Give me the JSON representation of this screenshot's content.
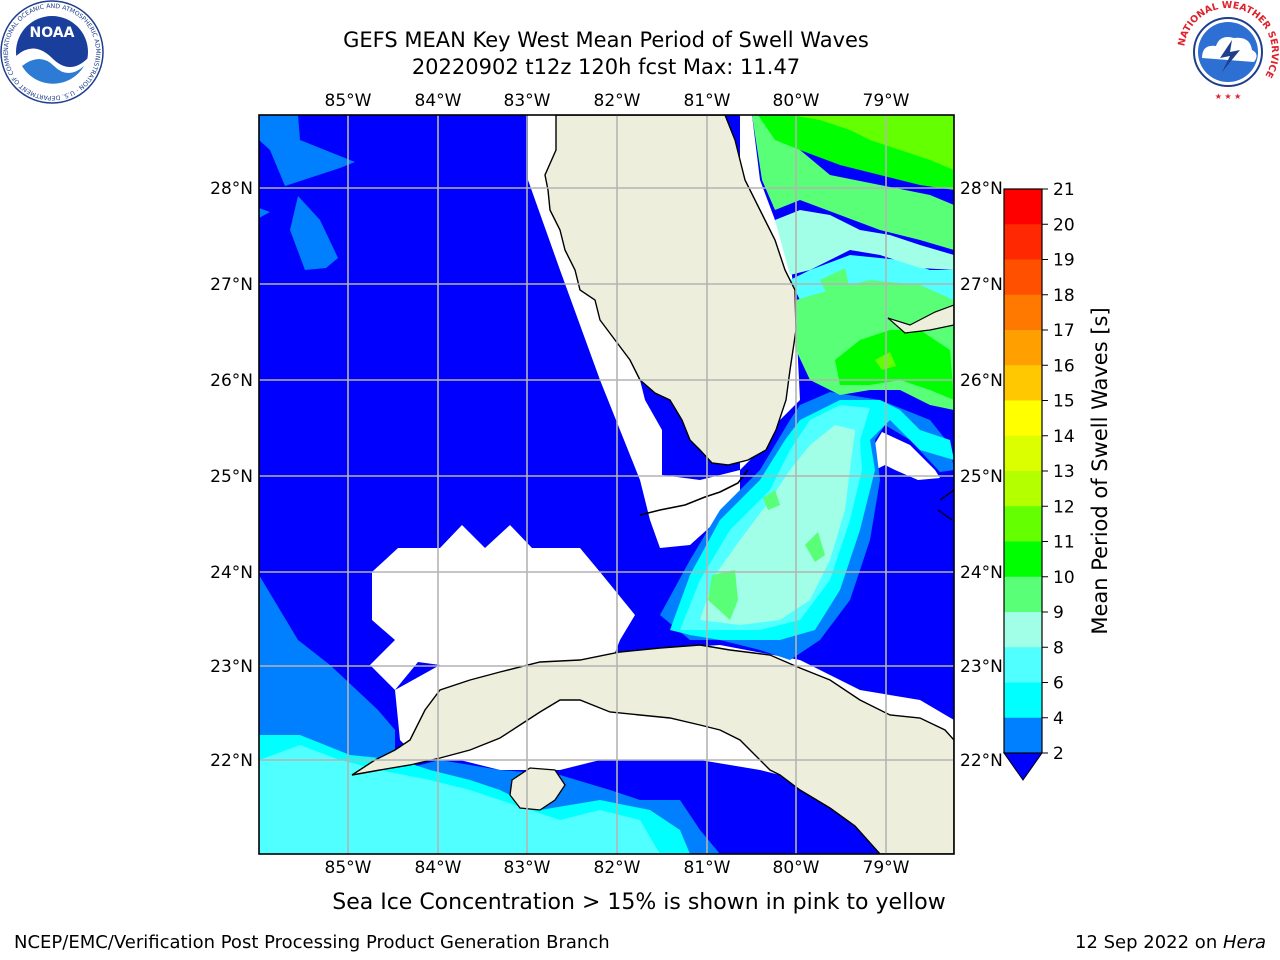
{
  "title_line1": "GEFS MEAN Key West Mean Period of Swell Waves",
  "title_line2": "20220902 t12z 120h fcst   Max: 11.47",
  "lon_labels": [
    "85°W",
    "84°W",
    "83°W",
    "82°W",
    "81°W",
    "80°W",
    "79°W"
  ],
  "lat_labels": [
    "28°N",
    "27°N",
    "26°N",
    "25°N",
    "24°N",
    "23°N",
    "22°N"
  ],
  "colorbar": {
    "label": "Mean Period of Swell Waves [s]",
    "ticks": [
      "21",
      "20",
      "19",
      "18",
      "17",
      "16",
      "15",
      "14",
      "13",
      "12",
      "11",
      "10",
      "9",
      "8",
      "6",
      "4",
      "2"
    ],
    "colors": [
      "#ff0000",
      "#ff2800",
      "#ff5000",
      "#ff7800",
      "#ffa000",
      "#ffc800",
      "#ffff00",
      "#dcff00",
      "#b4ff00",
      "#64ff00",
      "#00ff00",
      "#5aff78",
      "#a0ffe6",
      "#50ffff",
      "#00ffff",
      "#0080ff"
    ],
    "extend_color": "#0000ff"
  },
  "footnote": "Sea Ice Concentration > 15% is shown in pink to yellow",
  "credit": "NCEP/EMC/Verification Post Processing Product Generation Branch",
  "date_prefix": "12 Sep 2022 on ",
  "date_machine": "Hera",
  "logos": {
    "noaa": {
      "text": "NOAA",
      "ring": "NATIONAL OCEANIC AND ATMOSPHERIC ADMINISTRATION · U.S. DEPARTMENT OF COMMERCE ·"
    },
    "nws": {
      "ring": "NATIONAL WEATHER SERVICE"
    }
  },
  "colors": {
    "land": "#eeeedd",
    "grid": "#b4b4b4",
    "ocean_low": "#0000ff"
  }
}
